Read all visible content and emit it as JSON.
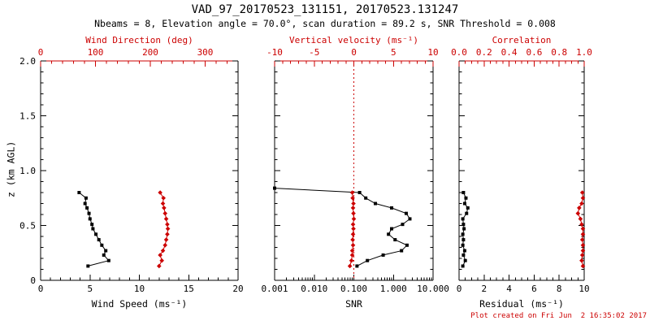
{
  "title": "VAD_97_20170523_131151, 20170523.131247",
  "subtitle": "Nbeams = 8, Elevation angle = 70.0°, scan duration = 89.2 s, SNR Threshold = 0.008",
  "footer": "Plot created on Fri Jun  2 16:35:02 2017",
  "colors": {
    "black": "#000000",
    "red": "#cc0000",
    "background": "#ffffff"
  },
  "y_axis": {
    "label": "z (km AGL)",
    "min": 0,
    "max": 2,
    "ticks": [
      0,
      0.5,
      1,
      1.5,
      2
    ],
    "tick_labels": [
      "0",
      "0.5",
      "1.0",
      "1.5",
      "2.0"
    ],
    "minor_step": 0.1
  },
  "chart_data": [
    {
      "type": "line",
      "name": "wind",
      "bottom_axis": {
        "label": "Wind Speed (ms⁻¹)",
        "scale": "linear",
        "min": 0,
        "max": 20,
        "ticks": [
          0,
          5,
          10,
          15,
          20
        ],
        "tick_labels": [
          "0",
          "5",
          "10",
          "15",
          "20"
        ],
        "minor_step": 1,
        "color": "#000000"
      },
      "top_axis": {
        "label": "Wind Direction (deg)",
        "scale": "linear",
        "min": 0,
        "max": 360,
        "ticks": [
          0,
          100,
          200,
          300
        ],
        "tick_labels": [
          "0",
          "100",
          "200",
          "300"
        ],
        "minor_step": 20,
        "color": "#cc0000"
      },
      "series": [
        {
          "name": "wind-speed",
          "axis": "bottom",
          "color": "#000000",
          "marker": "square",
          "z": [
            0.13,
            0.18,
            0.23,
            0.27,
            0.32,
            0.37,
            0.42,
            0.47,
            0.51,
            0.56,
            0.61,
            0.66,
            0.7,
            0.75,
            0.8
          ],
          "values": [
            4.8,
            6.9,
            6.4,
            6.6,
            6.2,
            5.9,
            5.6,
            5.3,
            5.2,
            5.0,
            4.9,
            4.7,
            4.5,
            4.6,
            3.9
          ]
        },
        {
          "name": "wind-direction",
          "axis": "top",
          "color": "#cc0000",
          "marker": "diamond",
          "z": [
            0.13,
            0.18,
            0.23,
            0.27,
            0.32,
            0.37,
            0.42,
            0.47,
            0.51,
            0.56,
            0.61,
            0.66,
            0.7,
            0.75,
            0.8
          ],
          "values": [
            216,
            221,
            218,
            223,
            227,
            229,
            231,
            232,
            231,
            229,
            227,
            225,
            223,
            224,
            218
          ]
        }
      ]
    },
    {
      "type": "line",
      "name": "snr",
      "bottom_axis": {
        "label": "SNR",
        "scale": "log",
        "min": 0.001,
        "max": 10,
        "ticks": [
          0.001,
          0.01,
          0.1,
          1,
          10
        ],
        "tick_labels": [
          "0.001",
          "0.010",
          "0.100",
          "1.000",
          "10.000"
        ],
        "color": "#000000"
      },
      "top_axis": {
        "label": "Vertical velocity (ms⁻¹)",
        "scale": "linear",
        "min": -10,
        "max": 10,
        "ticks": [
          -10,
          -5,
          0,
          5,
          10
        ],
        "tick_labels": [
          "-10",
          "-5",
          "0",
          "5",
          "10"
        ],
        "minor_step": 1,
        "color": "#cc0000"
      },
      "ref_line": {
        "axis": "top",
        "value": 0,
        "color": "#cc0000",
        "style": "dotted"
      },
      "series": [
        {
          "name": "snr-profile",
          "axis": "bottom",
          "color": "#000000",
          "marker": "square",
          "z": [
            0.13,
            0.18,
            0.23,
            0.27,
            0.32,
            0.37,
            0.42,
            0.47,
            0.51,
            0.56,
            0.61,
            0.66,
            0.7,
            0.75,
            0.8,
            0.84
          ],
          "values": [
            0.12,
            0.22,
            0.55,
            1.6,
            2.2,
            1.1,
            0.75,
            0.9,
            1.7,
            2.6,
            2.1,
            0.9,
            0.35,
            0.2,
            0.14,
            0.001
          ]
        },
        {
          "name": "vertical-velocity",
          "axis": "top",
          "color": "#cc0000",
          "marker": "diamond",
          "z": [
            0.13,
            0.18,
            0.23,
            0.27,
            0.32,
            0.37,
            0.42,
            0.47,
            0.51,
            0.56,
            0.61,
            0.66,
            0.7,
            0.75,
            0.8
          ],
          "values": [
            -0.5,
            -0.3,
            -0.2,
            -0.2,
            -0.1,
            -0.15,
            -0.1,
            -0.05,
            -0.1,
            0.0,
            -0.05,
            -0.1,
            -0.05,
            -0.15,
            -0.2
          ]
        }
      ]
    },
    {
      "type": "line",
      "name": "quality",
      "bottom_axis": {
        "label": "Residual (ms⁻¹)",
        "scale": "linear",
        "min": 0,
        "max": 10,
        "ticks": [
          0,
          2,
          4,
          6,
          8,
          10
        ],
        "tick_labels": [
          "0",
          "2",
          "4",
          "6",
          "8",
          "10"
        ],
        "minor_step": 0.5,
        "color": "#000000"
      },
      "top_axis": {
        "label": "Correlation",
        "scale": "linear",
        "min": 0,
        "max": 1,
        "ticks": [
          0,
          0.2,
          0.4,
          0.6,
          0.8,
          1.0
        ],
        "tick_labels": [
          "0.0",
          "0.2",
          "0.4",
          "0.6",
          "0.8",
          "1.0"
        ],
        "minor_step": 0.05,
        "color": "#cc0000"
      },
      "series": [
        {
          "name": "residual",
          "axis": "bottom",
          "color": "#000000",
          "marker": "square",
          "z": [
            0.13,
            0.18,
            0.23,
            0.27,
            0.32,
            0.37,
            0.42,
            0.47,
            0.51,
            0.56,
            0.61,
            0.66,
            0.7,
            0.75,
            0.8
          ],
          "values": [
            0.3,
            0.5,
            0.35,
            0.45,
            0.3,
            0.35,
            0.3,
            0.4,
            0.35,
            0.3,
            0.6,
            0.7,
            0.45,
            0.55,
            0.35
          ]
        },
        {
          "name": "correlation",
          "axis": "top",
          "color": "#cc0000",
          "marker": "diamond",
          "z": [
            0.13,
            0.18,
            0.23,
            0.27,
            0.32,
            0.37,
            0.42,
            0.47,
            0.51,
            0.56,
            0.61,
            0.66,
            0.7,
            0.75,
            0.8
          ],
          "values": [
            0.99,
            0.98,
            0.985,
            0.99,
            0.99,
            0.985,
            0.99,
            0.99,
            0.98,
            0.97,
            0.95,
            0.96,
            0.98,
            0.99,
            0.985
          ]
        }
      ]
    }
  ]
}
